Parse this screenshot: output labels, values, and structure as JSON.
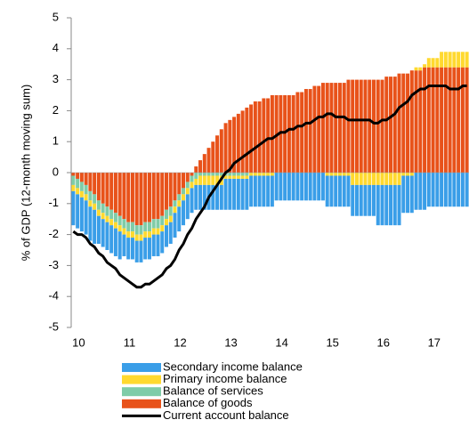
{
  "chart_data": {
    "type": "bar",
    "y_label": "% of GDP (12-month moving sum)",
    "categories": [
      "10",
      null,
      null,
      null,
      null,
      null,
      null,
      null,
      null,
      null,
      null,
      null,
      "11",
      null,
      null,
      null,
      null,
      null,
      null,
      null,
      null,
      null,
      null,
      null,
      "12",
      null,
      null,
      null,
      null,
      null,
      null,
      null,
      null,
      null,
      null,
      null,
      "13",
      null,
      null,
      null,
      null,
      null,
      null,
      null,
      null,
      null,
      null,
      null,
      "14",
      null,
      null,
      null,
      null,
      null,
      null,
      null,
      null,
      null,
      null,
      null,
      "15",
      null,
      null,
      null,
      null,
      null,
      null,
      null,
      null,
      null,
      null,
      null,
      "16",
      null,
      null,
      null,
      null,
      null,
      null,
      null,
      null,
      null,
      null,
      null,
      "17",
      null,
      null,
      null,
      null,
      null,
      null,
      null,
      null,
      null
    ],
    "series": [
      {
        "name": "Secondary income balance",
        "color": "#3a9ee8",
        "values": [
          -1.1,
          -1.1,
          -1.1,
          -1.1,
          -1.1,
          -1.1,
          -0.9,
          -0.9,
          -0.9,
          -0.9,
          -0.9,
          -0.9,
          -0.7,
          -0.7,
          -0.7,
          -0.7,
          -0.7,
          -0.7,
          -0.7,
          -0.7,
          -0.7,
          -0.7,
          -0.7,
          -0.7,
          -0.8,
          -0.8,
          -0.8,
          -0.8,
          -0.8,
          -0.8,
          -0.8,
          -0.8,
          -0.8,
          -0.8,
          -0.8,
          -0.8,
          -1.0,
          -1.0,
          -1.0,
          -1.0,
          -1.0,
          -1.0,
          -1.0,
          -1.0,
          -1.0,
          -1.0,
          -1.0,
          -1.0,
          -0.9,
          -0.9,
          -0.9,
          -0.9,
          -0.9,
          -0.9,
          -0.9,
          -0.9,
          -0.9,
          -0.9,
          -0.9,
          -0.9,
          -1.0,
          -1.0,
          -1.0,
          -1.0,
          -1.0,
          -1.0,
          -1.0,
          -1.0,
          -1.0,
          -1.0,
          -1.0,
          -1.0,
          -1.3,
          -1.3,
          -1.3,
          -1.3,
          -1.3,
          -1.3,
          -1.2,
          -1.2,
          -1.2,
          -1.2,
          -1.2,
          -1.2,
          -1.1,
          -1.1,
          -1.1,
          -1.1,
          -1.1,
          -1.1,
          -1.1,
          -1.1,
          -1.1,
          -1.1
        ]
      },
      {
        "name": "Primary income balance",
        "color": "#ffd92f",
        "values": [
          -0.2,
          -0.2,
          -0.2,
          -0.2,
          -0.2,
          -0.2,
          -0.2,
          -0.2,
          -0.2,
          -0.2,
          -0.2,
          -0.2,
          -0.2,
          -0.2,
          -0.2,
          -0.2,
          -0.2,
          -0.2,
          -0.2,
          -0.2,
          -0.2,
          -0.2,
          -0.2,
          -0.2,
          -0.2,
          -0.2,
          -0.2,
          -0.2,
          -0.2,
          -0.2,
          -0.3,
          -0.3,
          -0.3,
          -0.3,
          -0.3,
          -0.3,
          -0.1,
          -0.1,
          -0.1,
          -0.1,
          -0.1,
          -0.1,
          -0.1,
          -0.1,
          -0.1,
          -0.1,
          -0.1,
          -0.1,
          0.0,
          0.0,
          0.0,
          0.0,
          0.0,
          0.0,
          0.0,
          0.0,
          0.0,
          0.0,
          0.0,
          0.0,
          -0.1,
          -0.1,
          -0.1,
          -0.1,
          -0.1,
          -0.1,
          -0.4,
          -0.4,
          -0.4,
          -0.4,
          -0.4,
          -0.4,
          -0.4,
          -0.4,
          -0.4,
          -0.4,
          -0.4,
          -0.4,
          -0.1,
          -0.1,
          -0.1,
          0.1,
          0.1,
          0.1,
          0.3,
          0.3,
          0.3,
          0.5,
          0.5,
          0.5,
          0.5,
          0.5,
          0.5,
          0.5
        ]
      },
      {
        "name": "Balance of services",
        "color": "#7fcca8",
        "values": [
          -0.3,
          -0.3,
          -0.3,
          -0.3,
          -0.3,
          -0.3,
          -0.3,
          -0.3,
          -0.3,
          -0.3,
          -0.3,
          -0.3,
          -0.3,
          -0.3,
          -0.3,
          -0.3,
          -0.3,
          -0.3,
          -0.3,
          -0.3,
          -0.3,
          -0.3,
          -0.3,
          -0.3,
          -0.2,
          -0.2,
          -0.2,
          -0.2,
          -0.2,
          -0.2,
          -0.1,
          -0.1,
          -0.1,
          -0.1,
          -0.1,
          -0.1,
          -0.1,
          -0.1,
          -0.1,
          -0.1,
          -0.1,
          -0.1,
          0.0,
          0.0,
          0.0,
          0.0,
          0.0,
          0.0,
          0.0,
          0.0,
          0.0,
          0.0,
          0.0,
          0.0,
          0.0,
          0.0,
          0.0,
          0.0,
          0.0,
          0.0,
          0.0,
          0.0,
          0.0,
          0.0,
          0.0,
          0.0,
          0.0,
          0.0,
          0.0,
          0.0,
          0.0,
          0.0,
          0.0,
          0.0,
          0.0,
          0.0,
          0.0,
          0.0,
          0.0,
          0.0,
          0.0,
          0.0,
          0.0,
          0.0,
          0.0,
          0.0,
          0.0,
          0.0,
          0.0,
          0.0,
          0.0,
          0.0,
          0.0,
          0.0
        ]
      },
      {
        "name": "Balance of goods",
        "color": "#e8521a",
        "values": [
          -0.1,
          -0.2,
          -0.3,
          -0.4,
          -0.6,
          -0.7,
          -0.9,
          -1.0,
          -1.1,
          -1.2,
          -1.3,
          -1.4,
          -1.5,
          -1.6,
          -1.6,
          -1.7,
          -1.7,
          -1.6,
          -1.6,
          -1.5,
          -1.5,
          -1.4,
          -1.2,
          -1.1,
          -0.9,
          -0.7,
          -0.5,
          -0.3,
          -0.1,
          0.2,
          0.4,
          0.6,
          0.8,
          1.0,
          1.2,
          1.4,
          1.6,
          1.7,
          1.8,
          1.9,
          2.0,
          2.1,
          2.2,
          2.3,
          2.3,
          2.4,
          2.4,
          2.5,
          2.5,
          2.5,
          2.5,
          2.5,
          2.5,
          2.6,
          2.6,
          2.7,
          2.7,
          2.8,
          2.8,
          2.9,
          2.9,
          2.9,
          2.9,
          2.9,
          2.9,
          3.0,
          3.0,
          3.0,
          3.0,
          3.0,
          3.0,
          3.0,
          3.0,
          3.0,
          3.1,
          3.1,
          3.1,
          3.2,
          3.2,
          3.2,
          3.3,
          3.3,
          3.3,
          3.4,
          3.4,
          3.4,
          3.4,
          3.4,
          3.4,
          3.4,
          3.4,
          3.4,
          3.4,
          3.4
        ]
      }
    ],
    "line": {
      "name": "Current account balance",
      "color": "#000000",
      "values": [
        -1.9,
        -2.0,
        -2.0,
        -2.1,
        -2.3,
        -2.4,
        -2.6,
        -2.7,
        -2.9,
        -3.0,
        -3.1,
        -3.3,
        -3.4,
        -3.5,
        -3.6,
        -3.7,
        -3.7,
        -3.6,
        -3.6,
        -3.5,
        -3.4,
        -3.3,
        -3.1,
        -3.0,
        -2.8,
        -2.5,
        -2.3,
        -2.0,
        -1.8,
        -1.5,
        -1.3,
        -1.1,
        -0.8,
        -0.6,
        -0.4,
        -0.2,
        0.0,
        0.1,
        0.3,
        0.4,
        0.5,
        0.6,
        0.7,
        0.8,
        0.9,
        1.0,
        1.1,
        1.1,
        1.2,
        1.3,
        1.3,
        1.4,
        1.4,
        1.5,
        1.5,
        1.6,
        1.6,
        1.7,
        1.8,
        1.8,
        1.9,
        1.9,
        1.8,
        1.8,
        1.8,
        1.7,
        1.7,
        1.7,
        1.7,
        1.7,
        1.7,
        1.6,
        1.6,
        1.7,
        1.7,
        1.8,
        1.9,
        2.1,
        2.2,
        2.3,
        2.5,
        2.6,
        2.7,
        2.7,
        2.8,
        2.8,
        2.8,
        2.8,
        2.8,
        2.7,
        2.7,
        2.7,
        2.8,
        2.8
      ]
    },
    "ylim": [
      -5,
      5
    ],
    "yticks": [
      -5,
      -4,
      -3,
      -2,
      -1,
      0,
      1,
      2,
      3,
      4,
      5
    ]
  }
}
